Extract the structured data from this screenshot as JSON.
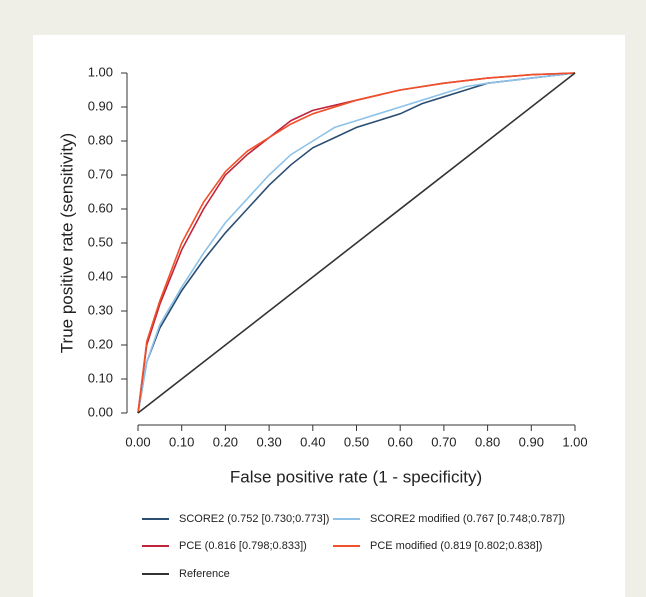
{
  "chart_data": {
    "type": "line",
    "xlabel": "False positive rate (1 - specificity)",
    "ylabel": "True positive rate (sensitivity)",
    "xlim": [
      0,
      1
    ],
    "ylim": [
      0,
      1
    ],
    "xticks": [
      {
        "value": 0,
        "label": "0.00"
      },
      {
        "value": 0.1,
        "label": "0.10"
      },
      {
        "value": 0.2,
        "label": "0.20"
      },
      {
        "value": 0.3,
        "label": "0.30"
      },
      {
        "value": 0.4,
        "label": "0.40"
      },
      {
        "value": 0.5,
        "label": "0.50"
      },
      {
        "value": 0.6,
        "label": "0.60"
      },
      {
        "value": 0.7,
        "label": "0.70"
      },
      {
        "value": 0.8,
        "label": "0.80"
      },
      {
        "value": 0.9,
        "label": "0.90"
      },
      {
        "value": 1,
        "label": "1.00"
      }
    ],
    "yticks": [
      {
        "value": 0,
        "label": "0.00"
      },
      {
        "value": 0.1,
        "label": "0.10"
      },
      {
        "value": 0.2,
        "label": "0.20"
      },
      {
        "value": 0.3,
        "label": "0.30"
      },
      {
        "value": 0.4,
        "label": "0.40"
      },
      {
        "value": 0.5,
        "label": "0.50"
      },
      {
        "value": 0.6,
        "label": "0.60"
      },
      {
        "value": 0.7,
        "label": "0.70"
      },
      {
        "value": 0.8,
        "label": "0.80"
      },
      {
        "value": 0.9,
        "label": "0.90"
      },
      {
        "value": 1,
        "label": "1.00"
      }
    ],
    "series": [
      {
        "name": "SCORE2 (0.752 [0.730;0.773])",
        "color": "#2c4e73",
        "x": [
          0,
          0.02,
          0.05,
          0.1,
          0.15,
          0.2,
          0.25,
          0.3,
          0.35,
          0.4,
          0.45,
          0.5,
          0.55,
          0.6,
          0.65,
          0.7,
          0.75,
          0.8,
          0.9,
          1
        ],
        "values": [
          0,
          0.15,
          0.25,
          0.36,
          0.45,
          0.53,
          0.6,
          0.67,
          0.73,
          0.78,
          0.81,
          0.84,
          0.86,
          0.88,
          0.91,
          0.93,
          0.95,
          0.97,
          0.985,
          1
        ]
      },
      {
        "name": "SCORE2 modified (0.767 [0.748;0.787])",
        "color": "#8ec2e8",
        "x": [
          0,
          0.02,
          0.05,
          0.1,
          0.15,
          0.2,
          0.25,
          0.3,
          0.35,
          0.4,
          0.45,
          0.5,
          0.55,
          0.6,
          0.65,
          0.7,
          0.75,
          0.8,
          0.9,
          1
        ],
        "values": [
          0,
          0.15,
          0.26,
          0.37,
          0.47,
          0.56,
          0.63,
          0.7,
          0.76,
          0.8,
          0.84,
          0.86,
          0.88,
          0.9,
          0.92,
          0.94,
          0.96,
          0.97,
          0.985,
          1
        ]
      },
      {
        "name": "PCE (0.816 [0.798;0.833])",
        "color": "#c0243a",
        "x": [
          0,
          0.02,
          0.05,
          0.1,
          0.15,
          0.2,
          0.25,
          0.3,
          0.35,
          0.4,
          0.5,
          0.6,
          0.7,
          0.8,
          0.9,
          1
        ],
        "values": [
          0,
          0.2,
          0.32,
          0.48,
          0.6,
          0.7,
          0.76,
          0.81,
          0.86,
          0.89,
          0.92,
          0.95,
          0.97,
          0.985,
          0.995,
          1
        ]
      },
      {
        "name": "PCE modified (0.819 [0.802;0.838])",
        "color": "#f0502a",
        "x": [
          0,
          0.02,
          0.05,
          0.1,
          0.15,
          0.2,
          0.25,
          0.3,
          0.35,
          0.4,
          0.5,
          0.6,
          0.7,
          0.8,
          0.9,
          1
        ],
        "values": [
          0,
          0.21,
          0.33,
          0.5,
          0.62,
          0.71,
          0.77,
          0.81,
          0.85,
          0.88,
          0.92,
          0.95,
          0.97,
          0.985,
          0.995,
          1
        ]
      },
      {
        "name": "Reference",
        "color": "#333333",
        "x": [
          0,
          1
        ],
        "values": [
          0,
          1
        ]
      }
    ]
  }
}
